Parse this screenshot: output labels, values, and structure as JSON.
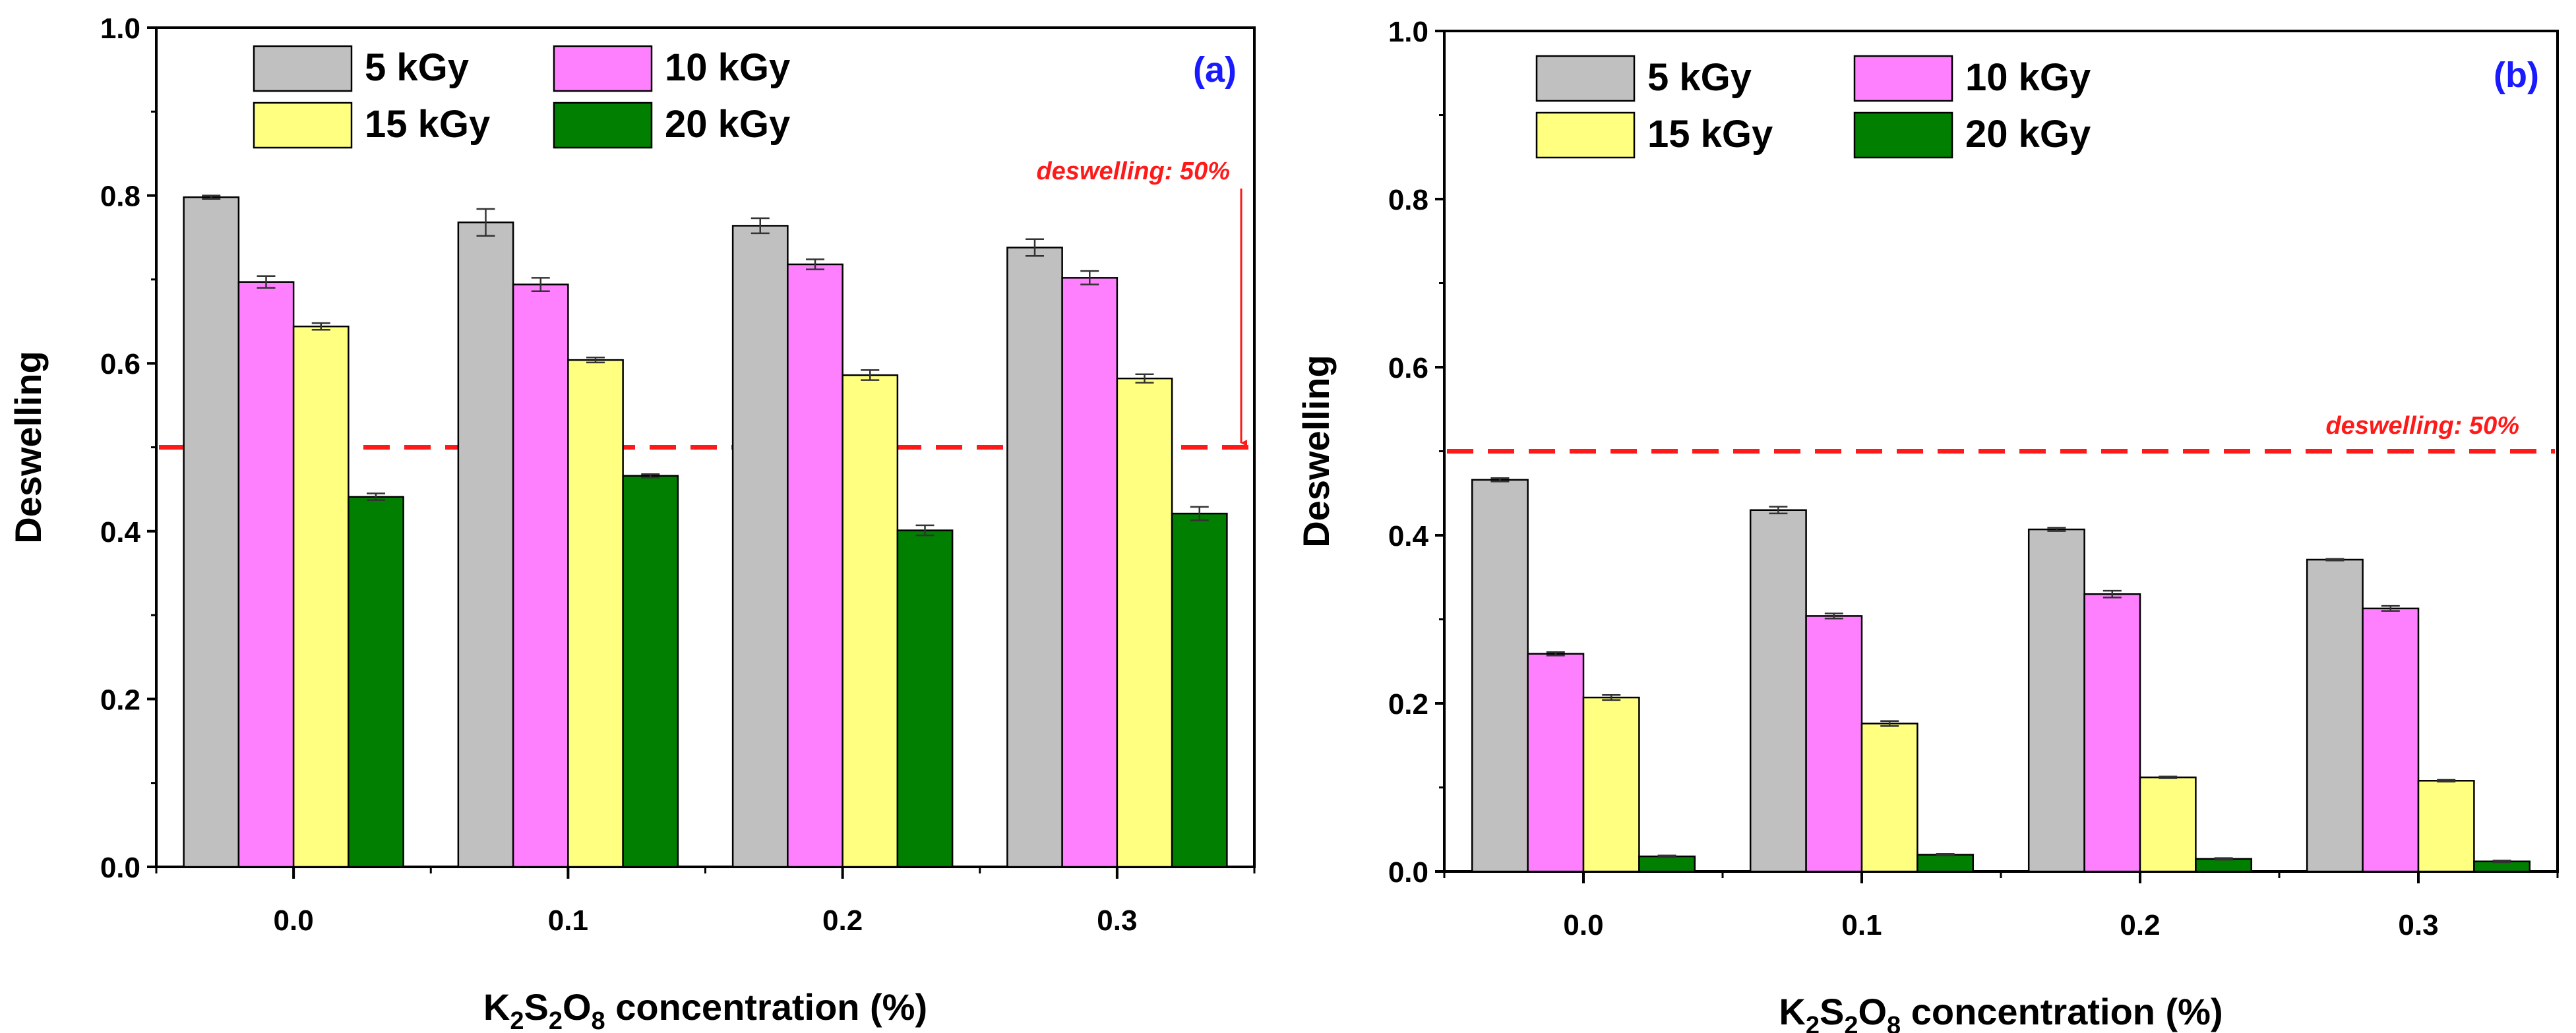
{
  "chart_data": [
    {
      "type": "bar",
      "panel_label": "(a)",
      "title": "",
      "xlabel": {
        "parts": [
          "K",
          "2",
          "S",
          "2",
          "O",
          "8",
          " concentration (%)"
        ]
      },
      "ylabel": "Deswelling",
      "ylim": [
        0,
        1.0
      ],
      "yticks": [
        "0.0",
        "0.2",
        "0.4",
        "0.6",
        "0.8",
        "1.0"
      ],
      "categories": [
        "0.0",
        "0.1",
        "0.2",
        "0.3"
      ],
      "series": [
        {
          "name": "5 kGy",
          "color": "#c0c0c0",
          "values": [
            0.798,
            0.768,
            0.764,
            0.738
          ],
          "errors": [
            0.002,
            0.016,
            0.009,
            0.01
          ]
        },
        {
          "name": "10 kGy",
          "color": "#ff80ff",
          "values": [
            0.697,
            0.694,
            0.718,
            0.702
          ],
          "errors": [
            0.007,
            0.008,
            0.006,
            0.008
          ]
        },
        {
          "name": "15 kGy",
          "color": "#ffff80",
          "values": [
            0.644,
            0.604,
            0.586,
            0.582
          ],
          "errors": [
            0.004,
            0.003,
            0.006,
            0.005
          ]
        },
        {
          "name": "20 kGy",
          "color": "#007f00",
          "values": [
            0.441,
            0.466,
            0.401,
            0.421
          ],
          "errors": [
            0.004,
            0.002,
            0.006,
            0.008
          ]
        }
      ],
      "reference_line": {
        "value": 0.5,
        "label": "deswelling: 50%",
        "color": "#ff1a1a",
        "arrow": true
      },
      "legend": "top-left, 2 columns"
    },
    {
      "type": "bar",
      "panel_label": "(b)",
      "title": "",
      "xlabel": {
        "parts": [
          "K",
          "2",
          "S",
          "2",
          "O",
          "8",
          " concentration (%)"
        ]
      },
      "ylabel": "Deswelling",
      "ylim": [
        0,
        1.0
      ],
      "yticks": [
        "0.0",
        "0.2",
        "0.4",
        "0.6",
        "0.8",
        "1.0"
      ],
      "categories": [
        "0.0",
        "0.1",
        "0.2",
        "0.3"
      ],
      "series": [
        {
          "name": "5 kGy",
          "color": "#c0c0c0",
          "values": [
            0.466,
            0.43,
            0.407,
            0.371
          ],
          "errors": [
            0.002,
            0.004,
            0.002,
            0.001
          ]
        },
        {
          "name": "10 kGy",
          "color": "#ff80ff",
          "values": [
            0.259,
            0.304,
            0.33,
            0.313
          ],
          "errors": [
            0.002,
            0.003,
            0.004,
            0.003
          ]
        },
        {
          "name": "15 kGy",
          "color": "#ffff80",
          "values": [
            0.207,
            0.176,
            0.112,
            0.108
          ],
          "errors": [
            0.003,
            0.003,
            0.001,
            0.001
          ]
        },
        {
          "name": "20 kGy",
          "color": "#007f00",
          "values": [
            0.018,
            0.02,
            0.015,
            0.012
          ],
          "errors": [
            0.001,
            0.001,
            0.001,
            0.001
          ]
        }
      ],
      "reference_line": {
        "value": 0.5,
        "label": "deswelling: 50%",
        "color": "#ff1a1a",
        "arrow": false
      },
      "legend": "top-left, 2 columns"
    }
  ]
}
